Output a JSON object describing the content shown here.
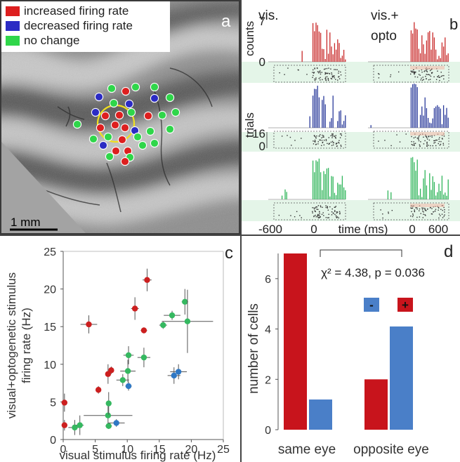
{
  "panel_a": {
    "letter": "a",
    "legend": [
      {
        "label": "increased firing rate",
        "color": "#dd1f1f"
      },
      {
        "label": "decreased firing rate",
        "color": "#2b2bc4"
      },
      {
        "label": "no change",
        "color": "#2fd64a"
      }
    ],
    "scale_bar_label": "1 mm",
    "colors": {
      "increased": "#dd1f1f",
      "decreased": "#2b2bc4",
      "no_change": "#2fd64a",
      "ring": "#f0e01e"
    }
  },
  "panel_b": {
    "letter": "b",
    "col_titles": [
      "vis.",
      "vis.+\nopto"
    ],
    "counts_label": "counts",
    "counts_max": "7",
    "counts_min": "0",
    "trials_label": "trials",
    "trials_max": "16",
    "trials_min": "0",
    "x_ticks_left": [
      "-600",
      "0"
    ],
    "x_ticks_right": [
      "0",
      "600"
    ],
    "x_label": "time (ms)",
    "row_colors": [
      "#c92a2a",
      "#2a3a9a",
      "#2fb55a"
    ]
  },
  "chart_data": [
    {
      "type": "scatter",
      "panel": "c",
      "xlabel": "visual stimulus firing rate (Hz)",
      "ylabel": "visual+optogenetic stimulus firing rate (Hz)",
      "xlim": [
        0,
        25
      ],
      "ylim": [
        0,
        25
      ],
      "xticks": [
        0,
        5,
        10,
        15,
        20,
        25
      ],
      "yticks": [
        0,
        5,
        10,
        15,
        20,
        25
      ],
      "series": [
        {
          "color": "#cc1f1f",
          "points": [
            {
              "x": 0.2,
              "y": 4.9,
              "xerr": 0.3,
              "yerr": 1.2
            },
            {
              "x": 0.2,
              "y": 1.9,
              "xerr": 0.3,
              "yerr": 0.7
            },
            {
              "x": 4.0,
              "y": 15.3,
              "xerr": 1.3,
              "yerr": 1.2
            },
            {
              "x": 5.5,
              "y": 6.6,
              "xerr": 0.4,
              "yerr": 0.5
            },
            {
              "x": 7.0,
              "y": 8.7,
              "xerr": 0.3,
              "yerr": 1.3
            },
            {
              "x": 7.5,
              "y": 9.2,
              "xerr": 0.3,
              "yerr": 0.5
            },
            {
              "x": 11.2,
              "y": 17.4,
              "xerr": 0.6,
              "yerr": 1.5
            },
            {
              "x": 12.6,
              "y": 14.5,
              "xerr": 0.5,
              "yerr": 0.4
            },
            {
              "x": 13.1,
              "y": 21.2,
              "xerr": 0.7,
              "yerr": 1.5
            }
          ]
        },
        {
          "color": "#35b860",
          "points": [
            {
              "x": 1.8,
              "y": 1.6,
              "xerr": 1.0,
              "yerr": 1.0
            },
            {
              "x": 2.6,
              "y": 1.9,
              "xerr": 0.6,
              "yerr": 1.3
            },
            {
              "x": 7.0,
              "y": 3.2,
              "xerr": 3.8,
              "yerr": 1.5
            },
            {
              "x": 7.1,
              "y": 4.8,
              "xerr": 0.4,
              "yerr": 1.5
            },
            {
              "x": 7.1,
              "y": 1.8,
              "xerr": 0.5,
              "yerr": 0.4
            },
            {
              "x": 9.3,
              "y": 7.9,
              "xerr": 1.0,
              "yerr": 0.8
            },
            {
              "x": 10.1,
              "y": 9.1,
              "xerr": 1.2,
              "yerr": 1.5
            },
            {
              "x": 10.2,
              "y": 11.2,
              "xerr": 0.8,
              "yerr": 1.2
            },
            {
              "x": 12.6,
              "y": 10.9,
              "xerr": 1.0,
              "yerr": 1.3
            },
            {
              "x": 15.6,
              "y": 15.2,
              "xerr": 0.6,
              "yerr": 0.5
            },
            {
              "x": 17.0,
              "y": 16.5,
              "xerr": 1.3,
              "yerr": 0.6
            },
            {
              "x": 19.0,
              "y": 18.3,
              "xerr": 0.5,
              "yerr": 1.7
            },
            {
              "x": 19.4,
              "y": 15.7,
              "xerr": 4.0,
              "yerr": 4.2
            }
          ]
        },
        {
          "color": "#2f78c4",
          "points": [
            {
              "x": 8.3,
              "y": 2.2,
              "xerr": 1.3,
              "yerr": 0.5
            },
            {
              "x": 10.2,
              "y": 7.1,
              "xerr": 0.5,
              "yerr": 0.6
            },
            {
              "x": 17.3,
              "y": 8.5,
              "xerr": 1.0,
              "yerr": 1.1
            },
            {
              "x": 18.0,
              "y": 9.0,
              "xerr": 1.3,
              "yerr": 1.0
            }
          ]
        }
      ]
    },
    {
      "type": "bar",
      "panel": "d",
      "categories": [
        "same eye",
        "opposite eye"
      ],
      "ylabel": "number of cells",
      "ylim": [
        0,
        7
      ],
      "yticks": [
        0,
        2,
        4,
        6
      ],
      "series": [
        {
          "color": "#c8141c",
          "values": [
            7,
            2
          ]
        },
        {
          "color": "#4a7fc8",
          "values": [
            1.2,
            4.1
          ]
        }
      ],
      "annotation": "χ² = 4.38, p = 0.036",
      "legend_symbols": [
        {
          "symbol": "-",
          "color": "#4a7fc8"
        },
        {
          "symbol": "+",
          "color": "#c8141c"
        }
      ]
    }
  ]
}
